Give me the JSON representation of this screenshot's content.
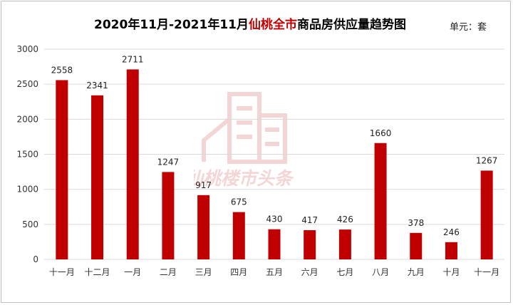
{
  "title": {
    "prefix": "2020年11月-2021年11月",
    "highlight": "仙桃全市",
    "suffix": "商品房供应量趋势图"
  },
  "unit_label": "单元：套",
  "watermark_text": "仙桃楼市头条",
  "colors": {
    "bar": "#c00000",
    "grid": "#d9d9d9",
    "title_accent": "#c00000"
  },
  "chart_data": {
    "type": "bar",
    "categories": [
      "十一月",
      "十二月",
      "一月",
      "二月",
      "三月",
      "四月",
      "五月",
      "六月",
      "七月",
      "八月",
      "九月",
      "十月",
      "十一月"
    ],
    "values": [
      2558,
      2341,
      2711,
      1247,
      917,
      675,
      430,
      417,
      426,
      1660,
      378,
      246,
      1267
    ],
    "title": "2020年11月-2021年11月仙桃全市商品房供应量趋势图",
    "xlabel": "",
    "ylabel": "",
    "ylim": [
      0,
      3000
    ],
    "yticks": [
      0,
      500,
      1000,
      1500,
      2000,
      2500,
      3000
    ],
    "grid": true,
    "legend": "none",
    "data_labels": true
  }
}
